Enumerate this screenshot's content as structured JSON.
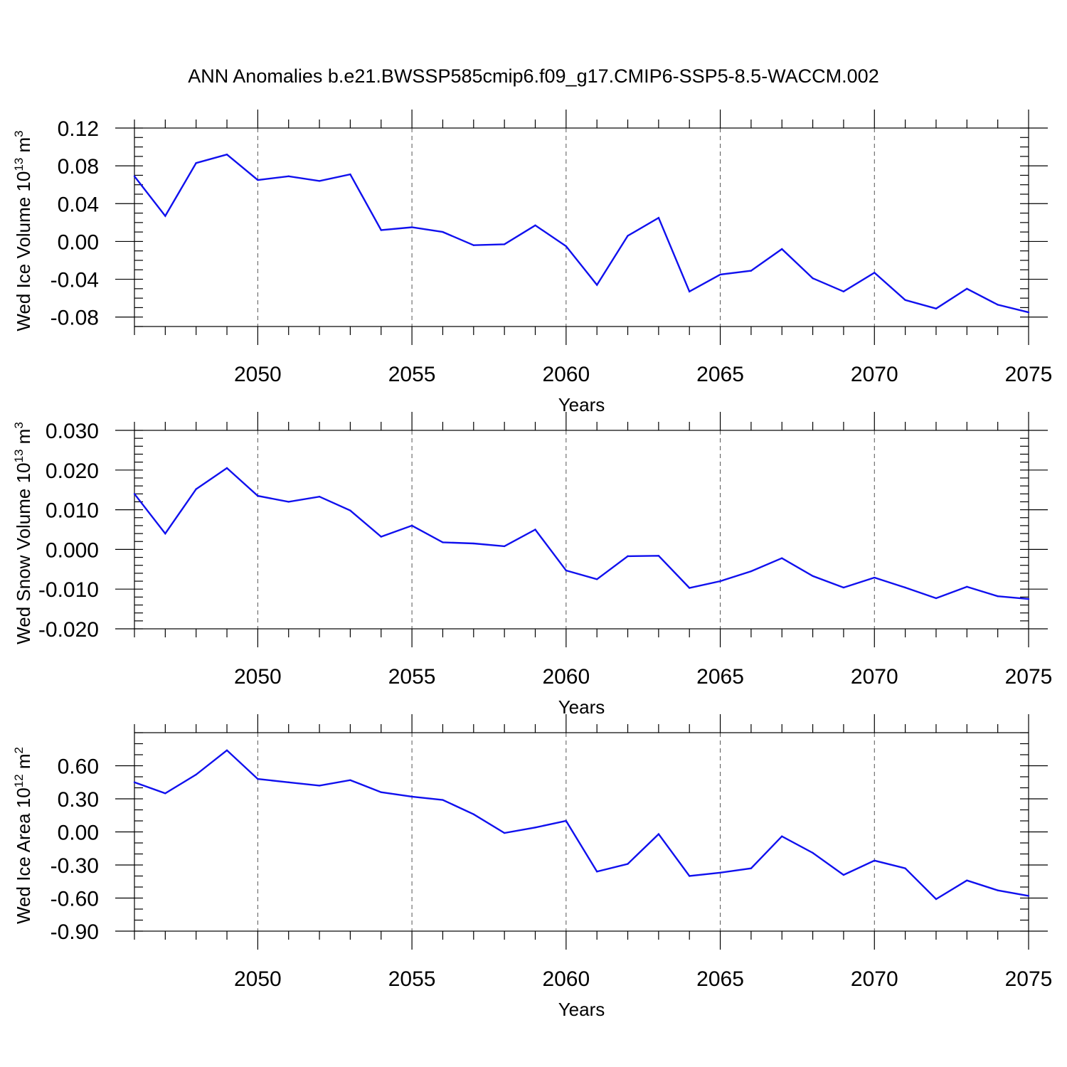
{
  "figure": {
    "title": "ANN Anomalies b.e21.BWSSP585cmip6.f09_g17.CMIP6-SSP5-8.5-WACCM.002"
  },
  "colors": {
    "line": "#1010ee",
    "frame": "#000000",
    "grid": "#555555"
  },
  "chart_data": [
    {
      "type": "line",
      "xlabel": "Years",
      "ylabel": {
        "prefix": "Wed Ice Volume 10",
        "exp1": "13",
        "mid": " m",
        "exp2": "3"
      },
      "xlim": [
        2046,
        2075
      ],
      "ylim": [
        -0.09,
        0.12
      ],
      "grid": "vertical dashed at labeled years",
      "xticks_labeled": [
        2050,
        2055,
        2060,
        2065,
        2070,
        2075
      ],
      "yticks": [
        0.12,
        0.08,
        0.04,
        0.0,
        -0.04,
        -0.08
      ],
      "ytick_labels": [
        "0.12",
        "0.08",
        "0.04",
        "0.00",
        "-0.04",
        "-0.08"
      ],
      "ytick_minor_step": 0.01,
      "x": [
        2046,
        2047,
        2048,
        2049,
        2050,
        2051,
        2052,
        2053,
        2054,
        2055,
        2056,
        2057,
        2058,
        2059,
        2060,
        2061,
        2062,
        2063,
        2064,
        2065,
        2066,
        2067,
        2068,
        2069,
        2070,
        2071,
        2072,
        2073,
        2074,
        2075
      ],
      "y": [
        0.069,
        0.027,
        0.083,
        0.092,
        0.065,
        0.069,
        0.064,
        0.071,
        0.012,
        0.015,
        0.01,
        -0.004,
        -0.003,
        0.017,
        -0.005,
        -0.046,
        0.006,
        0.025,
        -0.053,
        -0.035,
        -0.031,
        -0.008,
        -0.039,
        -0.053,
        -0.033,
        -0.062,
        -0.071,
        -0.05,
        -0.067,
        -0.075
      ]
    },
    {
      "type": "line",
      "xlabel": "Years",
      "ylabel": {
        "prefix": "Wed Snow Volume 10",
        "exp1": "13",
        "mid": " m",
        "exp2": "3"
      },
      "xlim": [
        2046,
        2075
      ],
      "ylim": [
        -0.02,
        0.03
      ],
      "grid": "vertical dashed at labeled years",
      "xticks_labeled": [
        2050,
        2055,
        2060,
        2065,
        2070,
        2075
      ],
      "yticks": [
        0.03,
        0.02,
        0.01,
        0.0,
        -0.01,
        -0.02
      ],
      "ytick_labels": [
        "0.030",
        "0.020",
        "0.010",
        "0.000",
        "-0.010",
        "-0.020"
      ],
      "ytick_minor_step": 0.002,
      "x": [
        2046,
        2047,
        2048,
        2049,
        2050,
        2051,
        2052,
        2053,
        2054,
        2055,
        2056,
        2057,
        2058,
        2059,
        2060,
        2061,
        2062,
        2063,
        2064,
        2065,
        2066,
        2067,
        2068,
        2069,
        2070,
        2071,
        2072,
        2073,
        2074,
        2075
      ],
      "y": [
        0.014,
        0.004,
        0.0152,
        0.0205,
        0.0135,
        0.012,
        0.0133,
        0.0098,
        0.0032,
        0.006,
        0.0018,
        0.0015,
        0.0008,
        0.005,
        -0.0053,
        -0.0075,
        -0.0017,
        -0.0016,
        -0.0097,
        -0.008,
        -0.0055,
        -0.0022,
        -0.0067,
        -0.0096,
        -0.0071,
        -0.0096,
        -0.0123,
        -0.0094,
        -0.0118,
        -0.0125
      ]
    },
    {
      "type": "line",
      "xlabel": "Years",
      "ylabel": {
        "prefix": "Wed Ice Area 10",
        "exp1": "12",
        "mid": " m",
        "exp2": "2"
      },
      "xlim": [
        2046,
        2075
      ],
      "ylim": [
        -0.9,
        0.9
      ],
      "grid": "vertical dashed at labeled years",
      "xticks_labeled": [
        2050,
        2055,
        2060,
        2065,
        2070,
        2075
      ],
      "yticks": [
        0.6,
        0.3,
        0.0,
        -0.3,
        -0.6,
        -0.9
      ],
      "ytick_labels": [
        "0.60",
        "0.30",
        "0.00",
        "-0.30",
        "-0.60",
        "-0.90"
      ],
      "ytick_minor_step": 0.1,
      "x": [
        2046,
        2047,
        2048,
        2049,
        2050,
        2051,
        2052,
        2053,
        2054,
        2055,
        2056,
        2057,
        2058,
        2059,
        2060,
        2061,
        2062,
        2063,
        2064,
        2065,
        2066,
        2067,
        2068,
        2069,
        2070,
        2071,
        2072,
        2073,
        2074,
        2075
      ],
      "y": [
        0.45,
        0.35,
        0.52,
        0.74,
        0.48,
        0.45,
        0.42,
        0.47,
        0.36,
        0.32,
        0.29,
        0.16,
        -0.01,
        0.04,
        0.1,
        -0.36,
        -0.29,
        -0.02,
        -0.4,
        -0.37,
        -0.33,
        -0.04,
        -0.19,
        -0.39,
        -0.26,
        -0.33,
        -0.61,
        -0.44,
        -0.53,
        -0.58
      ]
    }
  ]
}
